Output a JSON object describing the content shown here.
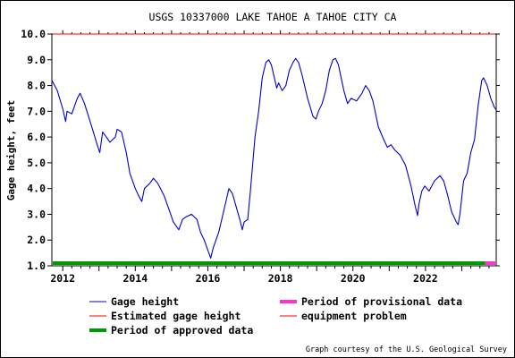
{
  "chart_data": {
    "type": "line",
    "title": "USGS 10337000 LAKE TAHOE A TAHOE CITY CA",
    "ylabel": "Gage height, feet",
    "xlabel": "",
    "ylim": [
      1.0,
      10.0
    ],
    "y_ticks": [
      "1.0",
      "2.0",
      "3.0",
      "4.0",
      "5.0",
      "6.0",
      "7.0",
      "8.0",
      "9.0",
      "10.0"
    ],
    "x_ticks": [
      "2012",
      "2014",
      "2016",
      "2018",
      "2020",
      "2022"
    ],
    "xlim": [
      2011.7,
      2023.95
    ],
    "grid": false,
    "series": [
      {
        "name": "Gage height",
        "color": "#0000cc",
        "points": [
          [
            2011.7,
            8.2
          ],
          [
            2011.85,
            7.8
          ],
          [
            2012.0,
            7.1
          ],
          [
            2012.08,
            6.6
          ],
          [
            2012.12,
            7.0
          ],
          [
            2012.25,
            6.9
          ],
          [
            2012.4,
            7.5
          ],
          [
            2012.48,
            7.7
          ],
          [
            2012.6,
            7.3
          ],
          [
            2012.8,
            6.4
          ],
          [
            2012.95,
            5.7
          ],
          [
            2013.02,
            5.4
          ],
          [
            2013.1,
            6.2
          ],
          [
            2013.2,
            6.0
          ],
          [
            2013.3,
            5.8
          ],
          [
            2013.45,
            6.0
          ],
          [
            2013.5,
            6.3
          ],
          [
            2013.62,
            6.2
          ],
          [
            2013.75,
            5.4
          ],
          [
            2013.85,
            4.6
          ],
          [
            2014.0,
            4.0
          ],
          [
            2014.1,
            3.7
          ],
          [
            2014.18,
            3.5
          ],
          [
            2014.25,
            4.0
          ],
          [
            2014.4,
            4.2
          ],
          [
            2014.5,
            4.4
          ],
          [
            2014.62,
            4.2
          ],
          [
            2014.8,
            3.7
          ],
          [
            2014.95,
            3.1
          ],
          [
            2015.05,
            2.7
          ],
          [
            2015.2,
            2.4
          ],
          [
            2015.3,
            2.8
          ],
          [
            2015.4,
            2.9
          ],
          [
            2015.55,
            3.0
          ],
          [
            2015.7,
            2.8
          ],
          [
            2015.8,
            2.3
          ],
          [
            2015.9,
            2.0
          ],
          [
            2016.0,
            1.6
          ],
          [
            2016.08,
            1.3
          ],
          [
            2016.15,
            1.7
          ],
          [
            2016.3,
            2.3
          ],
          [
            2016.4,
            2.9
          ],
          [
            2016.5,
            3.5
          ],
          [
            2016.58,
            4.0
          ],
          [
            2016.68,
            3.8
          ],
          [
            2016.8,
            3.2
          ],
          [
            2016.88,
            2.8
          ],
          [
            2016.95,
            2.4
          ],
          [
            2017.0,
            2.7
          ],
          [
            2017.1,
            2.8
          ],
          [
            2017.18,
            4.0
          ],
          [
            2017.3,
            6.0
          ],
          [
            2017.4,
            7.0
          ],
          [
            2017.5,
            8.3
          ],
          [
            2017.6,
            8.9
          ],
          [
            2017.68,
            9.0
          ],
          [
            2017.75,
            8.8
          ],
          [
            2017.85,
            8.2
          ],
          [
            2017.9,
            7.9
          ],
          [
            2017.95,
            8.1
          ],
          [
            2018.05,
            7.8
          ],
          [
            2018.15,
            8.0
          ],
          [
            2018.25,
            8.6
          ],
          [
            2018.35,
            8.9
          ],
          [
            2018.42,
            9.05
          ],
          [
            2018.5,
            8.9
          ],
          [
            2018.6,
            8.4
          ],
          [
            2018.75,
            7.5
          ],
          [
            2018.9,
            6.8
          ],
          [
            2018.98,
            6.7
          ],
          [
            2019.05,
            7.0
          ],
          [
            2019.15,
            7.3
          ],
          [
            2019.25,
            7.8
          ],
          [
            2019.35,
            8.6
          ],
          [
            2019.45,
            9.0
          ],
          [
            2019.52,
            9.05
          ],
          [
            2019.6,
            8.8
          ],
          [
            2019.75,
            7.8
          ],
          [
            2019.85,
            7.3
          ],
          [
            2019.95,
            7.5
          ],
          [
            2020.1,
            7.4
          ],
          [
            2020.25,
            7.7
          ],
          [
            2020.35,
            8.0
          ],
          [
            2020.45,
            7.8
          ],
          [
            2020.55,
            7.4
          ],
          [
            2020.7,
            6.4
          ],
          [
            2020.85,
            5.9
          ],
          [
            2020.95,
            5.6
          ],
          [
            2021.05,
            5.7
          ],
          [
            2021.15,
            5.5
          ],
          [
            2021.3,
            5.3
          ],
          [
            2021.45,
            4.9
          ],
          [
            2021.6,
            4.1
          ],
          [
            2021.72,
            3.3
          ],
          [
            2021.78,
            2.95
          ],
          [
            2021.82,
            3.4
          ],
          [
            2021.9,
            3.9
          ],
          [
            2021.98,
            4.1
          ],
          [
            2022.1,
            3.9
          ],
          [
            2022.25,
            4.3
          ],
          [
            2022.4,
            4.5
          ],
          [
            2022.5,
            4.3
          ],
          [
            2022.6,
            3.8
          ],
          [
            2022.72,
            3.1
          ],
          [
            2022.85,
            2.7
          ],
          [
            2022.9,
            2.6
          ],
          [
            2022.95,
            3.0
          ],
          [
            2023.05,
            4.3
          ],
          [
            2023.15,
            4.6
          ],
          [
            2023.25,
            5.4
          ],
          [
            2023.35,
            5.9
          ],
          [
            2023.45,
            7.2
          ],
          [
            2023.55,
            8.2
          ],
          [
            2023.6,
            8.3
          ],
          [
            2023.7,
            8.0
          ],
          [
            2023.8,
            7.5
          ],
          [
            2023.9,
            7.15
          ],
          [
            2023.95,
            7.05
          ]
        ]
      },
      {
        "name": "Estimated gage height",
        "color": "#ff0000",
        "points": []
      },
      {
        "name": "Period of approved data",
        "color": "#009900",
        "range": [
          2011.7,
          2023.65
        ]
      },
      {
        "name": "Period of provisional data",
        "color": "#ff33cc",
        "range": [
          2023.65,
          2023.95
        ]
      },
      {
        "name": "equipment problem",
        "color": "#ff0000",
        "level": 10.0
      }
    ],
    "legend": [
      {
        "label": "Gage height",
        "color": "#0000cc",
        "style": "thin"
      },
      {
        "label": "Period of provisional data",
        "color": "#ff33cc",
        "style": "thick"
      },
      {
        "label": "Estimated gage height",
        "color": "#ff0000",
        "style": "thin"
      },
      {
        "label": "equipment problem",
        "color": "#ff0000",
        "style": "thin"
      },
      {
        "label": "Period of approved data",
        "color": "#009900",
        "style": "thick"
      }
    ],
    "legend_position": "bottom",
    "credit": "Graph courtesy of the U.S. Geological Survey"
  }
}
